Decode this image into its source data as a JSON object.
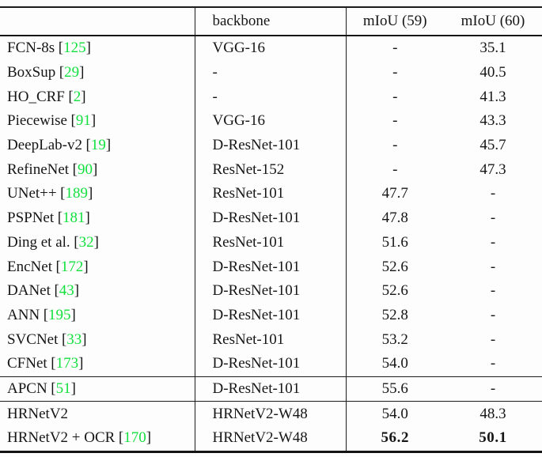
{
  "table": {
    "columns": [
      "",
      "backbone",
      "mIoU (59)",
      "mIoU (60)"
    ],
    "brackets": [
      "[",
      "]"
    ],
    "citation_color": "#12e03e",
    "rule_color": "#1c1c1c",
    "rows": [
      {
        "section": 1,
        "method": "FCN-8s",
        "cite": "125",
        "backbone": "VGG-16",
        "miou59": "-",
        "miou60": "35.1",
        "bold": false
      },
      {
        "section": 1,
        "method": "BoxSup",
        "cite": "29",
        "backbone": "-",
        "miou59": "-",
        "miou60": "40.5",
        "bold": false
      },
      {
        "section": 1,
        "method": "HO_CRF",
        "cite": "2",
        "backbone": "-",
        "miou59": "-",
        "miou60": "41.3",
        "bold": false
      },
      {
        "section": 1,
        "method": "Piecewise",
        "cite": "91",
        "backbone": "VGG-16",
        "miou59": "-",
        "miou60": "43.3",
        "bold": false
      },
      {
        "section": 1,
        "method": "DeepLab-v2",
        "cite": "19",
        "backbone": "D-ResNet-101",
        "miou59": "-",
        "miou60": "45.7",
        "bold": false
      },
      {
        "section": 1,
        "method": "RefineNet",
        "cite": "90",
        "backbone": "ResNet-152",
        "miou59": "-",
        "miou60": "47.3",
        "bold": false
      },
      {
        "section": 1,
        "method": "UNet++",
        "cite": "189",
        "backbone": "ResNet-101",
        "miou59": "47.7",
        "miou60": "-",
        "bold": false
      },
      {
        "section": 1,
        "method": "PSPNet",
        "cite": "181",
        "backbone": "D-ResNet-101",
        "miou59": "47.8",
        "miou60": "-",
        "bold": false
      },
      {
        "section": 1,
        "method": "Ding et al.",
        "cite": "32",
        "backbone": "ResNet-101",
        "miou59": "51.6",
        "miou60": "-",
        "bold": false
      },
      {
        "section": 1,
        "method": "EncNet",
        "cite": "172",
        "backbone": "D-ResNet-101",
        "miou59": "52.6",
        "miou60": "-",
        "bold": false
      },
      {
        "section": 1,
        "method": "DANet",
        "cite": "43",
        "backbone": "D-ResNet-101",
        "miou59": "52.6",
        "miou60": "-",
        "bold": false
      },
      {
        "section": 1,
        "method": "ANN",
        "cite": "195",
        "backbone": "D-ResNet-101",
        "miou59": "52.8",
        "miou60": "-",
        "bold": false
      },
      {
        "section": 1,
        "method": "SVCNet",
        "cite": "33",
        "backbone": "ResNet-101",
        "miou59": "53.2",
        "miou60": "-",
        "bold": false
      },
      {
        "section": 1,
        "method": "CFNet",
        "cite": "173",
        "backbone": "D-ResNet-101",
        "miou59": "54.0",
        "miou60": "-",
        "bold": false
      },
      {
        "section": 2,
        "method": "APCN",
        "cite": "51",
        "backbone": "D-ResNet-101",
        "miou59": "55.6",
        "miou60": "-",
        "bold": false
      },
      {
        "section": 3,
        "method": "HRNetV2",
        "cite": "",
        "backbone": "HRNetV2-W48",
        "miou59": "54.0",
        "miou60": "48.3",
        "bold": false
      },
      {
        "section": 3,
        "method": "HRNetV2 + OCR",
        "cite": "170",
        "backbone": "HRNetV2-W48",
        "miou59": "56.2",
        "miou60": "50.1",
        "bold": true
      }
    ]
  }
}
